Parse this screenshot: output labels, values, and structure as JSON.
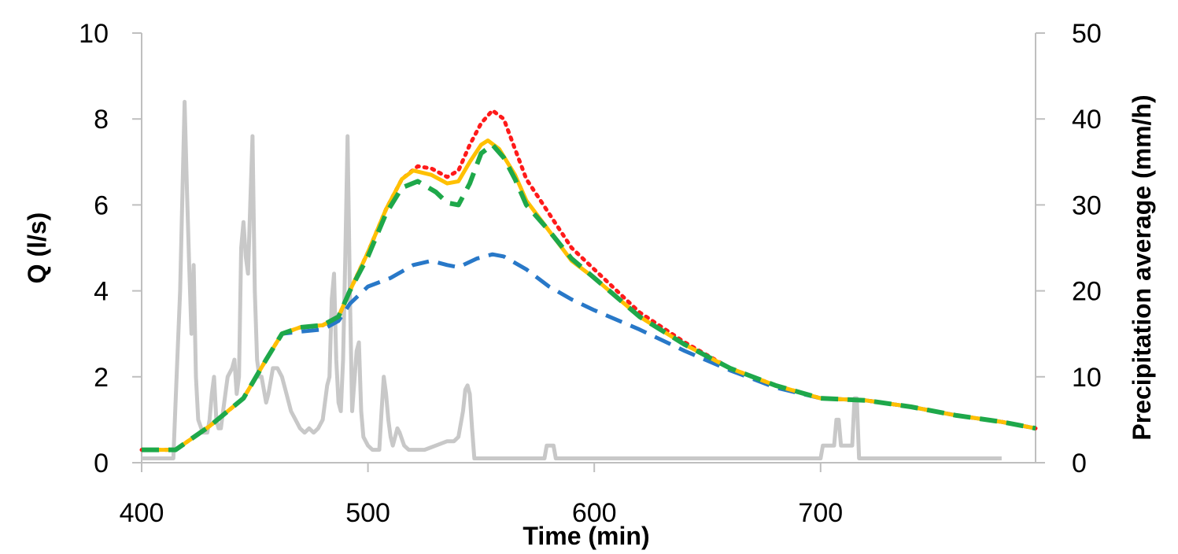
{
  "chart_data": {
    "type": "line",
    "title": "",
    "xlabel": "Time (min)",
    "ylabel": "Q (l/s)",
    "y2label": "Precipitation average (mm/h)",
    "xlim": [
      400,
      795
    ],
    "ylim": [
      0,
      10
    ],
    "y2lim": [
      0,
      50
    ],
    "xticks": [
      "400",
      "500",
      "600",
      "700"
    ],
    "xtick_values": [
      400,
      500,
      600,
      700
    ],
    "yticks": [
      "0",
      "2",
      "4",
      "6",
      "8",
      "10"
    ],
    "ytick_values": [
      0,
      2,
      4,
      6,
      8,
      10
    ],
    "y2ticks": [
      "0",
      "10",
      "20",
      "30",
      "40",
      "50"
    ],
    "y2tick_values": [
      0,
      10,
      20,
      30,
      40,
      50
    ],
    "grid": false,
    "legend": "none",
    "series": [
      {
        "key": "red-dotted",
        "axis": "left",
        "color": "#ff1a1a",
        "style": "dotted",
        "x": [
          400,
          415,
          430,
          445,
          455,
          462,
          470,
          480,
          487,
          492,
          500,
          508,
          515,
          522,
          528,
          535,
          540,
          545,
          550,
          555,
          560,
          565,
          570,
          580,
          590,
          600,
          620,
          640,
          660,
          680,
          700,
          720,
          740,
          760,
          780,
          795
        ],
        "y": [
          0.3,
          0.3,
          0.85,
          1.5,
          2.4,
          3.0,
          3.15,
          3.2,
          3.4,
          4.0,
          4.9,
          5.9,
          6.6,
          6.9,
          6.85,
          6.65,
          6.8,
          7.4,
          7.9,
          8.2,
          8.0,
          7.3,
          6.6,
          5.8,
          5.0,
          4.5,
          3.5,
          2.8,
          2.2,
          1.8,
          1.5,
          1.45,
          1.3,
          1.1,
          0.95,
          0.8
        ]
      },
      {
        "key": "blue-dashed",
        "axis": "left",
        "color": "#2878c8",
        "style": "dashed",
        "x": [
          400,
          415,
          430,
          445,
          455,
          462,
          470,
          480,
          487,
          492,
          500,
          510,
          520,
          528,
          535,
          540,
          548,
          555,
          560,
          570,
          580,
          590,
          600,
          620,
          640,
          660,
          680,
          700,
          720,
          740,
          760,
          780,
          795
        ],
        "y": [
          0.3,
          0.3,
          0.85,
          1.5,
          2.4,
          3.0,
          3.05,
          3.1,
          3.3,
          3.7,
          4.1,
          4.3,
          4.6,
          4.7,
          4.6,
          4.55,
          4.75,
          4.85,
          4.8,
          4.5,
          4.1,
          3.8,
          3.55,
          3.1,
          2.6,
          2.15,
          1.75,
          1.5,
          1.45,
          1.3,
          1.1,
          0.95,
          0.8
        ]
      },
      {
        "key": "yellow-solid",
        "axis": "left",
        "color": "#ffc000",
        "style": "solid",
        "x": [
          400,
          415,
          430,
          445,
          455,
          462,
          470,
          480,
          487,
          492,
          500,
          508,
          515,
          520,
          528,
          535,
          540,
          545,
          550,
          553,
          558,
          565,
          570,
          580,
          590,
          600,
          620,
          640,
          660,
          680,
          700,
          720,
          740,
          760,
          780,
          795
        ],
        "y": [
          0.3,
          0.3,
          0.85,
          1.5,
          2.4,
          3.0,
          3.15,
          3.2,
          3.4,
          4.0,
          4.9,
          5.9,
          6.6,
          6.8,
          6.7,
          6.5,
          6.55,
          7.0,
          7.4,
          7.5,
          7.3,
          6.7,
          6.1,
          5.4,
          4.7,
          4.3,
          3.4,
          2.75,
          2.2,
          1.8,
          1.5,
          1.45,
          1.3,
          1.1,
          0.95,
          0.8
        ]
      },
      {
        "key": "green-dashed",
        "axis": "left",
        "color": "#1ea84a",
        "style": "dashed",
        "x": [
          400,
          415,
          430,
          445,
          455,
          462,
          470,
          480,
          487,
          492,
          500,
          508,
          515,
          522,
          530,
          535,
          540,
          545,
          550,
          555,
          560,
          565,
          570,
          580,
          590,
          600,
          620,
          640,
          660,
          680,
          700,
          720,
          740,
          760,
          780,
          795
        ],
        "y": [
          0.3,
          0.3,
          0.85,
          1.5,
          2.4,
          3.0,
          3.15,
          3.2,
          3.4,
          4.0,
          4.8,
          5.8,
          6.4,
          6.55,
          6.3,
          6.05,
          6.0,
          6.5,
          7.2,
          7.4,
          7.1,
          6.6,
          6.0,
          5.4,
          4.75,
          4.3,
          3.4,
          2.75,
          2.2,
          1.8,
          1.5,
          1.45,
          1.3,
          1.1,
          0.95,
          0.8
        ]
      },
      {
        "key": "gray-precip",
        "axis": "right",
        "color": "#c8c8c8",
        "style": "solid",
        "x": [
          400,
          414,
          415,
          417,
          419,
          420,
          421,
          422,
          423,
          424,
          425,
          427,
          429,
          430,
          431,
          432,
          433,
          434,
          435,
          436,
          437,
          438,
          440,
          441,
          442,
          443,
          444,
          445,
          446,
          447,
          448,
          449,
          450,
          451,
          452,
          453,
          455,
          456,
          458,
          460,
          462,
          464,
          466,
          468,
          470,
          472,
          474,
          476,
          478,
          480,
          482,
          483,
          484,
          485,
          486,
          487,
          488,
          489,
          490,
          491,
          492,
          493,
          495,
          496,
          497,
          498,
          500,
          502,
          505,
          506,
          507,
          508,
          509,
          510,
          511,
          513,
          514,
          516,
          518,
          520,
          525,
          530,
          535,
          538,
          540,
          542,
          543,
          544,
          545,
          546,
          547,
          550,
          555,
          560,
          565,
          570,
          575,
          578,
          579,
          582,
          583,
          590,
          600,
          650,
          700,
          701,
          705,
          706,
          707,
          708,
          709,
          710,
          714,
          715,
          716,
          717,
          718,
          719,
          740,
          780
        ],
        "y": [
          0.5,
          0.5,
          7,
          20,
          42,
          32,
          23,
          15,
          23,
          10,
          5,
          3.5,
          3.5,
          5,
          8,
          10,
          5,
          4,
          4,
          6,
          8,
          10,
          11,
          12,
          8,
          10,
          25,
          28,
          24,
          22,
          30,
          38,
          20,
          12,
          10,
          10,
          7,
          8,
          11,
          11,
          10,
          8,
          6,
          5,
          4,
          3.5,
          4,
          3.5,
          4,
          5,
          9,
          10,
          19,
          22,
          12,
          7,
          6,
          12,
          24,
          38,
          20,
          6,
          13,
          14,
          6,
          3,
          2,
          1.5,
          1.5,
          6,
          10,
          8,
          5,
          3,
          2,
          4,
          3.5,
          2,
          1.5,
          1.5,
          1.5,
          2,
          2.5,
          2.5,
          3,
          6,
          8.5,
          9,
          8,
          4,
          0.5,
          0.5,
          0.5,
          0.5,
          0.5,
          0.5,
          0.5,
          0.5,
          2,
          2,
          0.5,
          0.5,
          0.5,
          0.5,
          0.5,
          2,
          2,
          2,
          5,
          5,
          2,
          2,
          2,
          7.5,
          7.5,
          0.5,
          0.5,
          0.5,
          0.5,
          0.5
        ]
      }
    ]
  }
}
